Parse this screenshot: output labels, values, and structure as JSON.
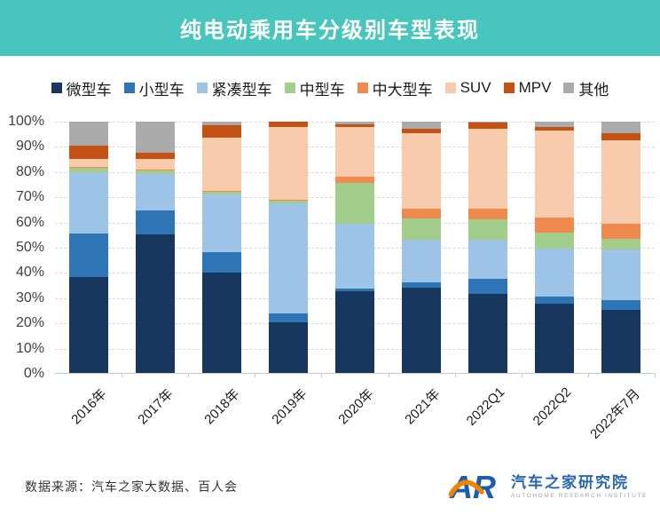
{
  "header": {
    "title": "纯电动乘用车分级别车型表现",
    "bg_color": "#48c5bc"
  },
  "chart_data": {
    "type": "bar",
    "stacked": true,
    "percent": true,
    "title": "纯电动乘用车分级别车型表现",
    "categories": [
      "2016年",
      "2017年",
      "2018年",
      "2019年",
      "2020年",
      "2021年",
      "2022Q1",
      "2022Q2",
      "2022年7月"
    ],
    "series": [
      {
        "name": "微型车",
        "color": "#17375e",
        "values": [
          38,
          55,
          40,
          20,
          32.5,
          34,
          31.5,
          27.5,
          25
        ]
      },
      {
        "name": "小型车",
        "color": "#2e75b6",
        "values": [
          17.5,
          9.5,
          8,
          3.5,
          1,
          2,
          6,
          3,
          4
        ]
      },
      {
        "name": "紧凑型车",
        "color": "#9dc3e6",
        "values": [
          24.5,
          14.5,
          23,
          44,
          26,
          17,
          15.5,
          19,
          20
        ]
      },
      {
        "name": "中型车",
        "color": "#a2cd8a",
        "values": [
          1.5,
          1.5,
          1,
          1,
          16,
          8.5,
          8,
          6.5,
          4.5
        ]
      },
      {
        "name": "中大型车",
        "color": "#ef8a4e",
        "values": [
          0.5,
          0.5,
          0.5,
          0.5,
          2.5,
          4,
          4.5,
          6,
          6
        ]
      },
      {
        "name": "SUV",
        "color": "#f8cbad",
        "values": [
          3,
          4,
          21,
          29,
          20,
          30,
          31.5,
          34.5,
          33
        ]
      },
      {
        "name": "MPV",
        "color": "#c35214",
        "values": [
          5.5,
          2.5,
          5,
          2,
          1,
          1.5,
          2.5,
          1.5,
          3
        ]
      },
      {
        "name": "其他",
        "color": "#ababab",
        "values": [
          9.5,
          12.5,
          1.5,
          0,
          1,
          3,
          0.5,
          2,
          4.5
        ]
      }
    ],
    "ylim": [
      0,
      100
    ],
    "yticks": [
      "0%",
      "10%",
      "20%",
      "30%",
      "40%",
      "50%",
      "60%",
      "70%",
      "80%",
      "90%",
      "100%"
    ],
    "grid": "dashed-horizontal",
    "legend_position": "top",
    "x_label_rotation_deg": -45
  },
  "footer": {
    "source": "数据来源：汽车之家大数据、百人会",
    "logo_mark": "AR",
    "logo_cn": "汽车之家研究院",
    "logo_en": "AUTOHOME  RESEARCH  INSTITUTE"
  }
}
